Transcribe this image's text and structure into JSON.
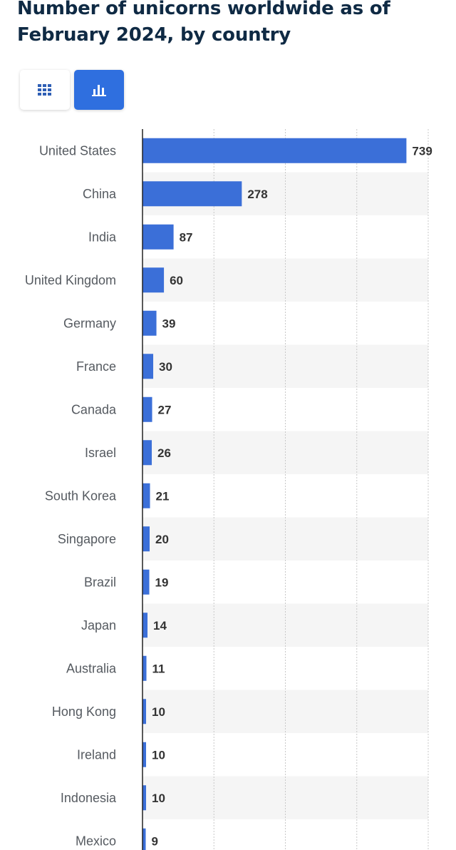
{
  "title": "Number of unicorns worldwide as of February 2024, by country",
  "toggles": {
    "table_icon": "grid-icon",
    "chart_icon": "bar-chart-icon",
    "active": "chart"
  },
  "colors": {
    "bar": "#3b6fd8",
    "axis": "#222222",
    "grid": "#c8c8c8",
    "band": "#f5f5f5",
    "active_toggle": "#2f6fdf"
  },
  "chart_data": {
    "type": "bar",
    "orientation": "horizontal",
    "categories": [
      "United States",
      "China",
      "India",
      "United Kingdom",
      "Germany",
      "France",
      "Canada",
      "Israel",
      "South Korea",
      "Singapore",
      "Brazil",
      "Japan",
      "Australia",
      "Hong Kong",
      "Ireland",
      "Indonesia",
      "Mexico"
    ],
    "values": [
      739,
      278,
      87,
      60,
      39,
      30,
      27,
      26,
      21,
      20,
      19,
      14,
      11,
      10,
      10,
      10,
      9
    ],
    "data_labels": true,
    "xlim": [
      0,
      800
    ],
    "grid": true,
    "alternating_row_bands": true
  }
}
